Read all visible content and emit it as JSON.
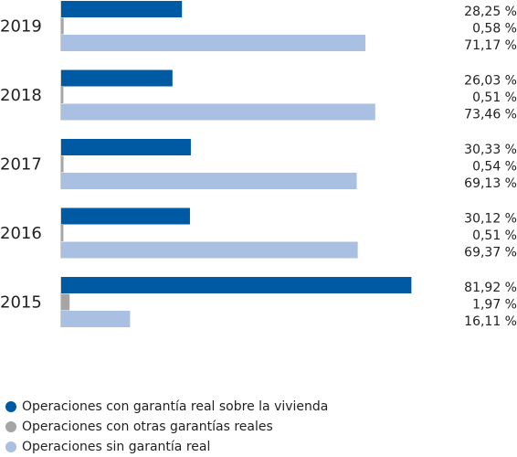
{
  "chart_data": {
    "type": "bar",
    "orientation": "horizontal",
    "categories": [
      "2019",
      "2018",
      "2017",
      "2016",
      "2015"
    ],
    "series": [
      {
        "name": "Operaciones con garantía real sobre la vivienda",
        "color": "#005aa3",
        "values": [
          28.25,
          26.03,
          30.33,
          30.12,
          81.92
        ],
        "labels": [
          "28,25 %",
          "26,03 %",
          "30,33 %",
          "30,12 %",
          "81,92 %"
        ]
      },
      {
        "name": "Operaciones con otras garantías reales",
        "color": "#a5a5a5",
        "values": [
          0.58,
          0.51,
          0.54,
          0.51,
          1.97
        ],
        "labels": [
          "0,58 %",
          "0,51 %",
          "0,54 %",
          "0,51 %",
          "1,97 %"
        ]
      },
      {
        "name": "Operaciones sin garantía real",
        "color": "#a9c0e2",
        "values": [
          71.17,
          73.46,
          69.13,
          69.37,
          16.11
        ],
        "labels": [
          "71,17 %",
          "73,46 %",
          "69,13 %",
          "69,37 %",
          "16,11 %"
        ]
      }
    ],
    "xlim": [
      0,
      100
    ],
    "grid": false,
    "legend_position": "bottom-left"
  }
}
